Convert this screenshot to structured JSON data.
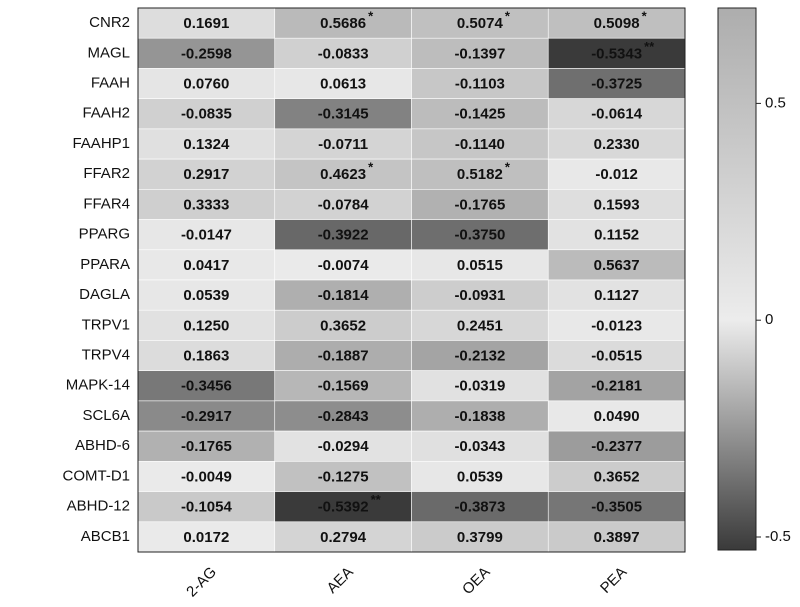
{
  "chart_data": {
    "type": "heatmap",
    "rows": [
      "CNR2",
      "MAGL",
      "FAAH",
      "FAAH2",
      "FAAHP1",
      "FFAR2",
      "FFAR4",
      "PPARG",
      "PPARA",
      "DAGLA",
      "TRPV1",
      "TRPV4",
      "MAPK-14",
      "SCL6A",
      "ABHD-6",
      "COMT-D1",
      "ABHD-12",
      "ABCB1"
    ],
    "columns": [
      "2-AG",
      "AEA",
      "OEA",
      "PEA"
    ],
    "values": [
      [
        0.1691,
        0.5686,
        0.5074,
        0.5098
      ],
      [
        -0.2598,
        -0.0833,
        -0.1397,
        -0.5343
      ],
      [
        0.076,
        0.0613,
        -0.1103,
        -0.3725
      ],
      [
        -0.0835,
        -0.3145,
        -0.1425,
        -0.0614
      ],
      [
        0.1324,
        -0.0711,
        -0.114,
        0.233
      ],
      [
        0.2917,
        0.4623,
        0.5182,
        -0.012
      ],
      [
        0.3333,
        -0.0784,
        -0.1765,
        0.1593
      ],
      [
        -0.0147,
        -0.3922,
        -0.375,
        0.1152
      ],
      [
        0.0417,
        -0.0074,
        0.0515,
        0.5637
      ],
      [
        0.0539,
        -0.1814,
        -0.0931,
        0.1127
      ],
      [
        0.125,
        0.3652,
        0.2451,
        -0.0123
      ],
      [
        0.1863,
        -0.1887,
        -0.2132,
        -0.0515
      ],
      [
        -0.3456,
        -0.1569,
        -0.0319,
        -0.2181
      ],
      [
        -0.2917,
        -0.2843,
        -0.1838,
        0.049
      ],
      [
        -0.1765,
        -0.0294,
        -0.0343,
        -0.2377
      ],
      [
        -0.0049,
        -0.1275,
        0.0539,
        0.3652
      ],
      [
        -0.1054,
        -0.5392,
        -0.3873,
        -0.3505
      ],
      [
        0.0172,
        0.2794,
        0.3799,
        0.3897
      ]
    ],
    "value_labels": [
      [
        "0.1691",
        "0.5686",
        "0.5074",
        "0.5098"
      ],
      [
        "-0.2598",
        "-0.0833",
        "-0.1397",
        "-0.5343"
      ],
      [
        "0.0760",
        "0.0613",
        "-0.1103",
        "-0.3725"
      ],
      [
        "-0.0835",
        "-0.3145",
        "-0.1425",
        "-0.0614"
      ],
      [
        "0.1324",
        "-0.0711",
        "-0.1140",
        "0.2330"
      ],
      [
        "0.2917",
        "0.4623",
        "0.5182",
        "-0.012"
      ],
      [
        "0.3333",
        "-0.0784",
        "-0.1765",
        "0.1593"
      ],
      [
        "-0.0147",
        "-0.3922",
        "-0.3750",
        "0.1152"
      ],
      [
        "0.0417",
        "-0.0074",
        "0.0515",
        "0.5637"
      ],
      [
        "0.0539",
        "-0.1814",
        "-0.0931",
        "0.1127"
      ],
      [
        "0.1250",
        "0.3652",
        "0.2451",
        "-0.0123"
      ],
      [
        "0.1863",
        "-0.1887",
        "-0.2132",
        "-0.0515"
      ],
      [
        "-0.3456",
        "-0.1569",
        "-0.0319",
        "-0.2181"
      ],
      [
        "-0.2917",
        "-0.2843",
        "-0.1838",
        "0.0490"
      ],
      [
        "-0.1765",
        "-0.0294",
        "-0.0343",
        "-0.2377"
      ],
      [
        "-0.0049",
        "-0.1275",
        "0.0539",
        "0.3652"
      ],
      [
        "-0.1054",
        "-0.5392",
        "-0.3873",
        "-0.3505"
      ],
      [
        "0.0172",
        "0.2794",
        "0.3799",
        "0.3897"
      ]
    ],
    "significance": [
      [
        null,
        "*",
        "*",
        "*"
      ],
      [
        null,
        null,
        null,
        "**"
      ],
      [
        null,
        null,
        null,
        null
      ],
      [
        null,
        null,
        null,
        null
      ],
      [
        null,
        null,
        null,
        null
      ],
      [
        null,
        "*",
        "*",
        null
      ],
      [
        null,
        null,
        null,
        null
      ],
      [
        null,
        null,
        null,
        null
      ],
      [
        null,
        null,
        null,
        null
      ],
      [
        null,
        null,
        null,
        null
      ],
      [
        null,
        null,
        null,
        null
      ],
      [
        null,
        null,
        null,
        null
      ],
      [
        null,
        null,
        null,
        null
      ],
      [
        null,
        null,
        null,
        null
      ],
      [
        null,
        null,
        null,
        null
      ],
      [
        null,
        null,
        null,
        null
      ],
      [
        null,
        "**",
        null,
        null
      ],
      [
        null,
        null,
        null,
        null
      ]
    ],
    "colorscale": [
      [
        -0.53,
        "#3a3a3a"
      ],
      [
        0,
        "#ececec"
      ],
      [
        0.72,
        "#adadad"
      ]
    ],
    "zlim": [
      -0.53,
      0.72
    ],
    "zticks": [
      -0.5,
      0,
      0.5
    ]
  }
}
